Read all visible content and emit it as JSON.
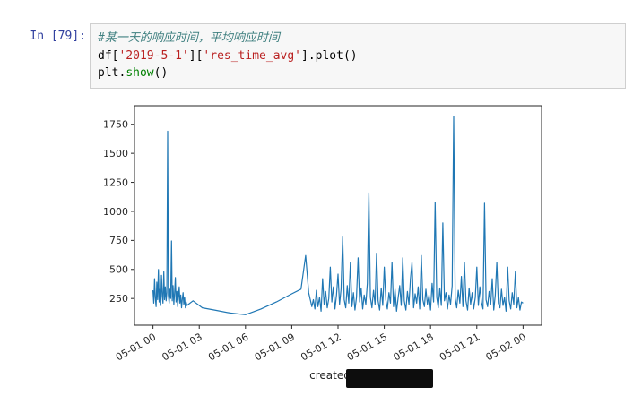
{
  "notebook": {
    "prompt": "In [79]:",
    "code": {
      "comment": "#某一天的响应时间，平均响应时间",
      "line2": [
        "df[",
        "'2019-5-1'",
        "][",
        "'res_time_avg'",
        "].plot()"
      ],
      "line3": [
        "plt.",
        "show",
        "()"
      ]
    }
  },
  "chart_data": {
    "type": "line",
    "title": "",
    "xlabel": "created_at",
    "ylabel": "",
    "legend": "none",
    "grid": false,
    "line_color": "#1f77b4",
    "x_ticks_hours": [
      0,
      3,
      6,
      9,
      12,
      15,
      18,
      21,
      24
    ],
    "x_tick_labels": [
      "05-01 00",
      "05-01 03",
      "05-01 06",
      "05-01 09",
      "05-01 12",
      "05-01 15",
      "05-01 18",
      "05-01 21",
      "05-02 00"
    ],
    "y_ticks": [
      250,
      500,
      750,
      1000,
      1250,
      1500,
      1750
    ],
    "xlim": [
      -1.2,
      25.2
    ],
    "ylim": [
      20,
      1910
    ],
    "series": [
      {
        "name": "res_time_avg",
        "points": [
          [
            0,
            320
          ],
          [
            0.05,
            210
          ],
          [
            0.1,
            420
          ],
          [
            0.15,
            260
          ],
          [
            0.2,
            180
          ],
          [
            0.25,
            390
          ],
          [
            0.3,
            240
          ],
          [
            0.35,
            500
          ],
          [
            0.4,
            220
          ],
          [
            0.45,
            330
          ],
          [
            0.5,
            190
          ],
          [
            0.55,
            450
          ],
          [
            0.6,
            270
          ],
          [
            0.65,
            210
          ],
          [
            0.7,
            480
          ],
          [
            0.75,
            240
          ],
          [
            0.8,
            350
          ],
          [
            0.85,
            230
          ],
          [
            0.9,
            300
          ],
          [
            0.95,
            1690
          ],
          [
            1,
            280
          ],
          [
            1.05,
            210
          ],
          [
            1.1,
            330
          ],
          [
            1.15,
            250
          ],
          [
            1.2,
            745
          ],
          [
            1.25,
            230
          ],
          [
            1.3,
            360
          ],
          [
            1.35,
            200
          ],
          [
            1.4,
            290
          ],
          [
            1.45,
            430
          ],
          [
            1.5,
            220
          ],
          [
            1.55,
            310
          ],
          [
            1.6,
            180
          ],
          [
            1.65,
            260
          ],
          [
            1.7,
            350
          ],
          [
            1.75,
            210
          ],
          [
            1.8,
            280
          ],
          [
            1.85,
            170
          ],
          [
            1.9,
            240
          ],
          [
            1.95,
            300
          ],
          [
            2,
            200
          ],
          [
            2.05,
            260
          ],
          [
            2.1,
            170
          ],
          [
            2.15,
            220
          ],
          [
            2.2,
            190
          ],
          [
            2.6,
            230
          ],
          [
            3.2,
            170
          ],
          [
            4,
            150
          ],
          [
            5,
            125
          ],
          [
            6,
            110
          ],
          [
            7,
            160
          ],
          [
            8,
            220
          ],
          [
            9,
            290
          ],
          [
            9.6,
            330
          ],
          [
            9.9,
            620
          ],
          [
            10.1,
            300
          ],
          [
            10.3,
            180
          ],
          [
            10.4,
            240
          ],
          [
            10.5,
            160
          ],
          [
            10.6,
            320
          ],
          [
            10.7,
            180
          ],
          [
            10.8,
            260
          ],
          [
            10.9,
            140
          ],
          [
            11,
            420
          ],
          [
            11.1,
            200
          ],
          [
            11.2,
            310
          ],
          [
            11.3,
            170
          ],
          [
            11.4,
            250
          ],
          [
            11.5,
            520
          ],
          [
            11.6,
            220
          ],
          [
            11.7,
            350
          ],
          [
            11.8,
            160
          ],
          [
            11.9,
            280
          ],
          [
            12,
            460
          ],
          [
            12.1,
            200
          ],
          [
            12.2,
            330
          ],
          [
            12.3,
            780
          ],
          [
            12.4,
            240
          ],
          [
            12.5,
            170
          ],
          [
            12.6,
            360
          ],
          [
            12.7,
            210
          ],
          [
            12.8,
            560
          ],
          [
            12.9,
            180
          ],
          [
            13,
            300
          ],
          [
            13.1,
            150
          ],
          [
            13.2,
            260
          ],
          [
            13.3,
            600
          ],
          [
            13.4,
            220
          ],
          [
            13.5,
            340
          ],
          [
            13.6,
            160
          ],
          [
            13.7,
            280
          ],
          [
            13.8,
            200
          ],
          [
            13.9,
            380
          ],
          [
            14,
            1160
          ],
          [
            14.1,
            260
          ],
          [
            14.2,
            170
          ],
          [
            14.3,
            320
          ],
          [
            14.4,
            200
          ],
          [
            14.5,
            640
          ],
          [
            14.6,
            230
          ],
          [
            14.7,
            150
          ],
          [
            14.8,
            340
          ],
          [
            14.9,
            190
          ],
          [
            15,
            520
          ],
          [
            15.1,
            240
          ],
          [
            15.2,
            160
          ],
          [
            15.3,
            300
          ],
          [
            15.4,
            210
          ],
          [
            15.5,
            560
          ],
          [
            15.6,
            180
          ],
          [
            15.7,
            330
          ],
          [
            15.8,
            140
          ],
          [
            15.9,
            260
          ],
          [
            16,
            360
          ],
          [
            16.1,
            190
          ],
          [
            16.2,
            600
          ],
          [
            16.3,
            230
          ],
          [
            16.4,
            150
          ],
          [
            16.5,
            310
          ],
          [
            16.6,
            200
          ],
          [
            16.7,
            420
          ],
          [
            16.8,
            560
          ],
          [
            16.9,
            170
          ],
          [
            17,
            290
          ],
          [
            17.1,
            210
          ],
          [
            17.2,
            350
          ],
          [
            17.3,
            160
          ],
          [
            17.4,
            620
          ],
          [
            17.5,
            240
          ],
          [
            17.6,
            180
          ],
          [
            17.7,
            330
          ],
          [
            17.8,
            200
          ],
          [
            17.9,
            280
          ],
          [
            18,
            150
          ],
          [
            18.1,
            380
          ],
          [
            18.2,
            220
          ],
          [
            18.3,
            1080
          ],
          [
            18.4,
            260
          ],
          [
            18.5,
            170
          ],
          [
            18.6,
            340
          ],
          [
            18.7,
            190
          ],
          [
            18.8,
            900
          ],
          [
            18.9,
            230
          ],
          [
            19,
            300
          ],
          [
            19.1,
            160
          ],
          [
            19.2,
            280
          ],
          [
            19.3,
            200
          ],
          [
            19.4,
            360
          ],
          [
            19.5,
            1820
          ],
          [
            19.6,
            250
          ],
          [
            19.7,
            170
          ],
          [
            19.8,
            320
          ],
          [
            19.9,
            210
          ],
          [
            20,
            440
          ],
          [
            20.1,
            180
          ],
          [
            20.2,
            560
          ],
          [
            20.3,
            230
          ],
          [
            20.4,
            150
          ],
          [
            20.5,
            340
          ],
          [
            20.6,
            200
          ],
          [
            20.7,
            300
          ],
          [
            20.8,
            160
          ],
          [
            20.9,
            260
          ],
          [
            21,
            520
          ],
          [
            21.1,
            190
          ],
          [
            21.2,
            350
          ],
          [
            21.3,
            220
          ],
          [
            21.4,
            160
          ],
          [
            21.5,
            1070
          ],
          [
            21.6,
            240
          ],
          [
            21.7,
            180
          ],
          [
            21.8,
            310
          ],
          [
            21.9,
            200
          ],
          [
            22,
            420
          ],
          [
            22.1,
            150
          ],
          [
            22.2,
            280
          ],
          [
            22.3,
            560
          ],
          [
            22.4,
            210
          ],
          [
            22.5,
            170
          ],
          [
            22.6,
            330
          ],
          [
            22.7,
            190
          ],
          [
            22.8,
            260
          ],
          [
            22.9,
            140
          ],
          [
            23,
            520
          ],
          [
            23.1,
            230
          ],
          [
            23.2,
            160
          ],
          [
            23.3,
            300
          ],
          [
            23.4,
            200
          ],
          [
            23.5,
            480
          ],
          [
            23.6,
            170
          ],
          [
            23.7,
            260
          ],
          [
            23.8,
            150
          ],
          [
            23.9,
            220
          ],
          [
            24,
            210
          ]
        ]
      }
    ]
  }
}
